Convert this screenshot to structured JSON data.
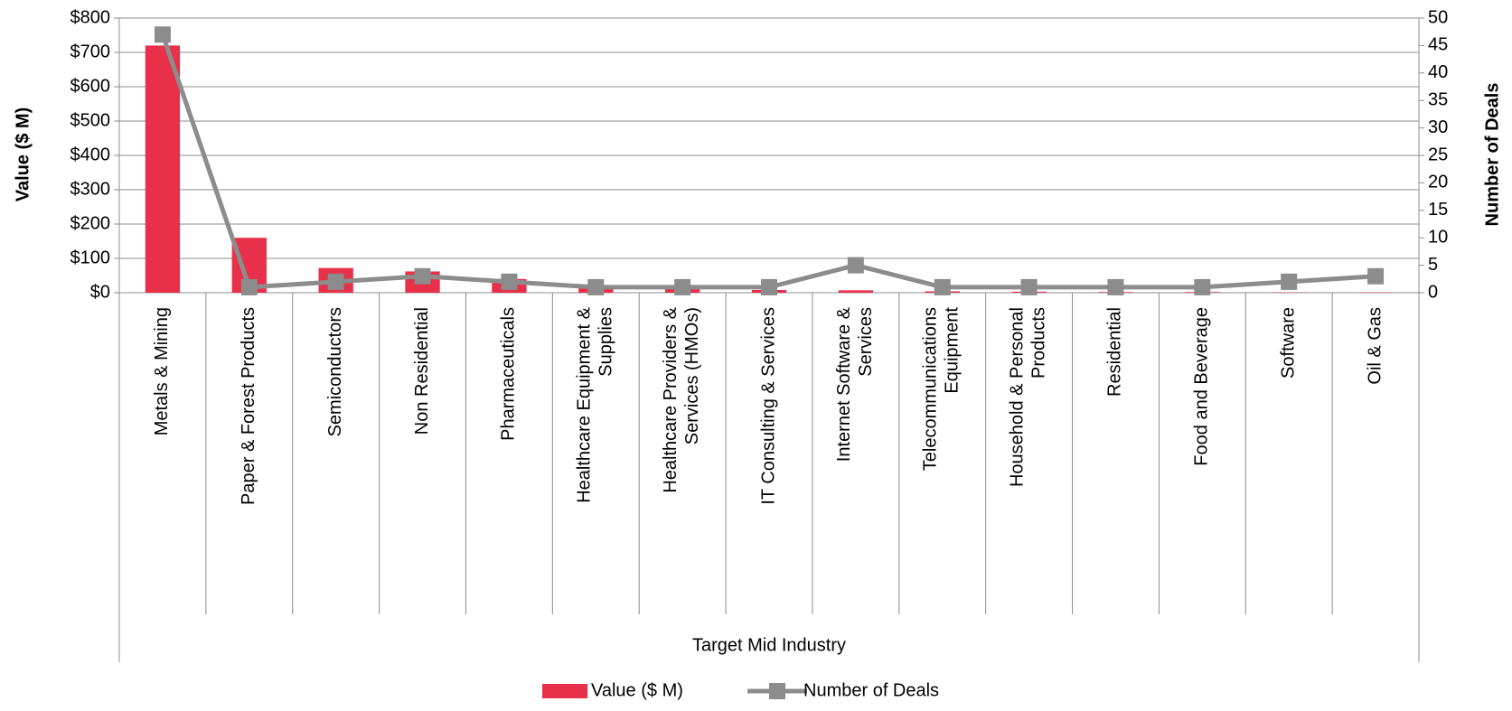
{
  "chart_data": {
    "type": "bar_line",
    "x_label": "Target Mid Industry",
    "y_label": "Value ($ M)",
    "y2_label": "Number of Deals",
    "categories": [
      "Metals & Mining",
      "Paper & Forest Products",
      "Semiconductors",
      "Non Residential",
      "Pharmaceuticals",
      "Healthcare Equipment & Supplies",
      "Healthcare Providers & Services (HMOs)",
      "IT Consulting & Services",
      "Internet Software & Services",
      "Telecommunications Equipment",
      "Household & Personal Products",
      "Residential",
      "Food and Beverage",
      "Software",
      "Oil & Gas"
    ],
    "series": [
      {
        "name": "Value ($ M)",
        "type": "bar",
        "color": "#e8304a",
        "values": [
          720,
          160,
          72,
          62,
          40,
          15,
          12,
          8,
          7,
          4,
          3,
          2,
          2,
          1,
          1
        ]
      },
      {
        "name": "Number of Deals",
        "type": "line",
        "axis": "y2",
        "color": "#8c8c8c",
        "values": [
          47,
          1,
          2,
          3,
          2,
          1,
          1,
          1,
          5,
          1,
          1,
          1,
          1,
          2,
          3
        ]
      }
    ],
    "ylim": [
      0,
      800
    ],
    "yticks": [
      {
        "value": 0,
        "label": "$0"
      },
      {
        "value": 100,
        "label": "$100"
      },
      {
        "value": 200,
        "label": "$200"
      },
      {
        "value": 300,
        "label": "$300"
      },
      {
        "value": 400,
        "label": "$400"
      },
      {
        "value": 500,
        "label": "$500"
      },
      {
        "value": 600,
        "label": "$600"
      },
      {
        "value": 700,
        "label": "$700"
      },
      {
        "value": 800,
        "label": "$800"
      }
    ],
    "y2lim": [
      0,
      50
    ],
    "y2ticks": [
      0,
      5,
      10,
      15,
      20,
      25,
      30,
      35,
      40,
      45,
      50
    ],
    "grid": true,
    "legend": "bottom"
  }
}
